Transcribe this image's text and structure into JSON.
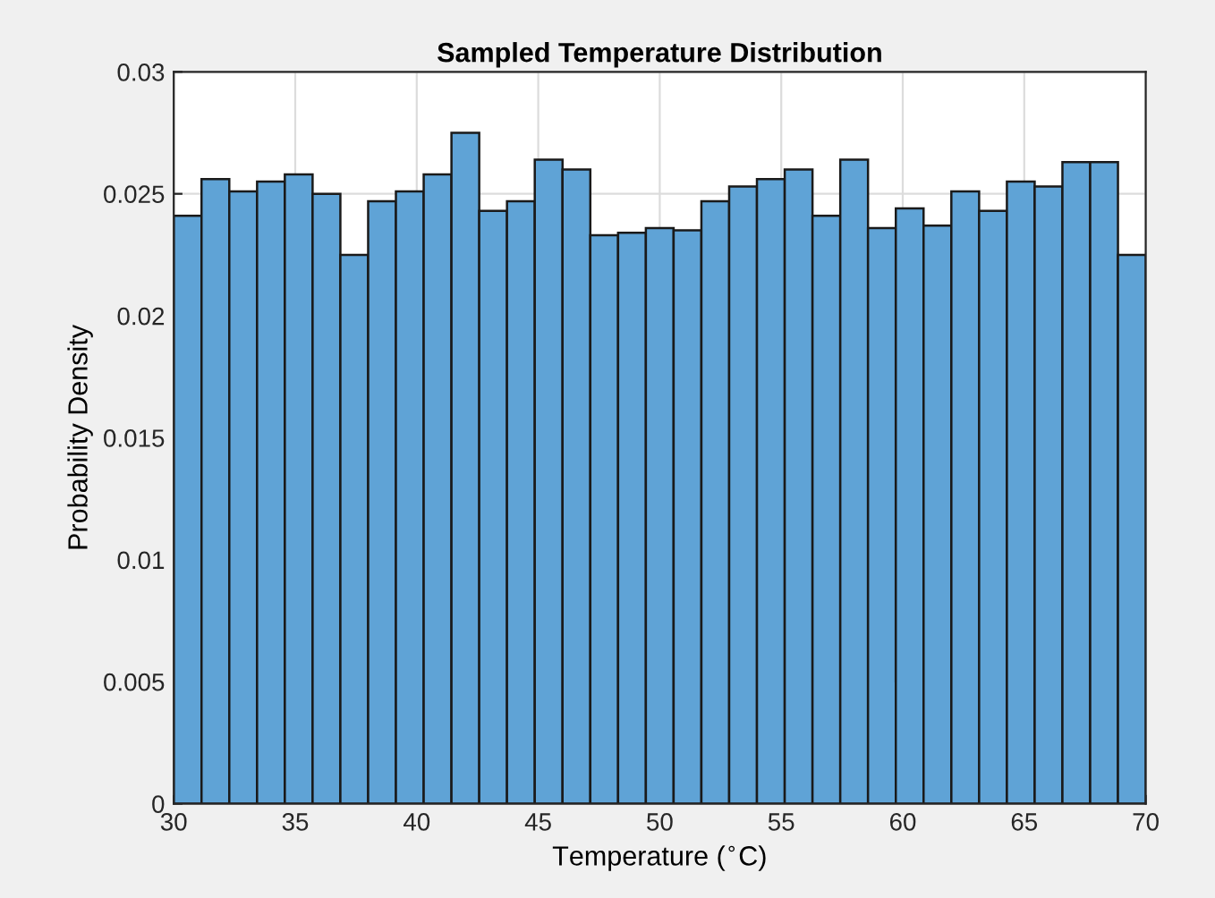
{
  "chart_data": {
    "type": "histogram",
    "title": "Sampled Temperature Distribution",
    "xlabel": "Temperature ($^{∘}$C)",
    "ylabel": "Probability Density",
    "bins": [
      30,
      31.143,
      32.286,
      33.429,
      34.571,
      35.714,
      36.857,
      38,
      39.143,
      40.286,
      41.429,
      42.571,
      43.714,
      44.857,
      46,
      47.143,
      48.286,
      49.429,
      50.571,
      51.714,
      52.857,
      54,
      55.143,
      56.286,
      57.429,
      58.571,
      59.714,
      60.857,
      62,
      63.143,
      64.286,
      65.429,
      66.571,
      67.714,
      68.857,
      70
    ],
    "values": [
      0.0241,
      0.0256,
      0.0251,
      0.0255,
      0.0258,
      0.025,
      0.0225,
      0.0247,
      0.0251,
      0.0258,
      0.0275,
      0.0243,
      0.0247,
      0.0264,
      0.026,
      0.0233,
      0.0234,
      0.0236,
      0.0235,
      0.0247,
      0.0253,
      0.0256,
      0.026,
      0.0241,
      0.0264,
      0.0236,
      0.0244,
      0.0237,
      0.0251,
      0.0243,
      0.0255,
      0.0253,
      0.0263,
      0.0263,
      0.0225
    ],
    "color": "#5fa3d6",
    "xlim": [
      30,
      70
    ],
    "ylim": [
      0,
      0.03
    ],
    "xticks": [
      30,
      35,
      40,
      45,
      50,
      55,
      60,
      65,
      70
    ],
    "yticks": [
      0,
      0.005,
      0.01,
      0.015,
      0.02,
      0.025,
      0.03
    ],
    "grid": true
  }
}
